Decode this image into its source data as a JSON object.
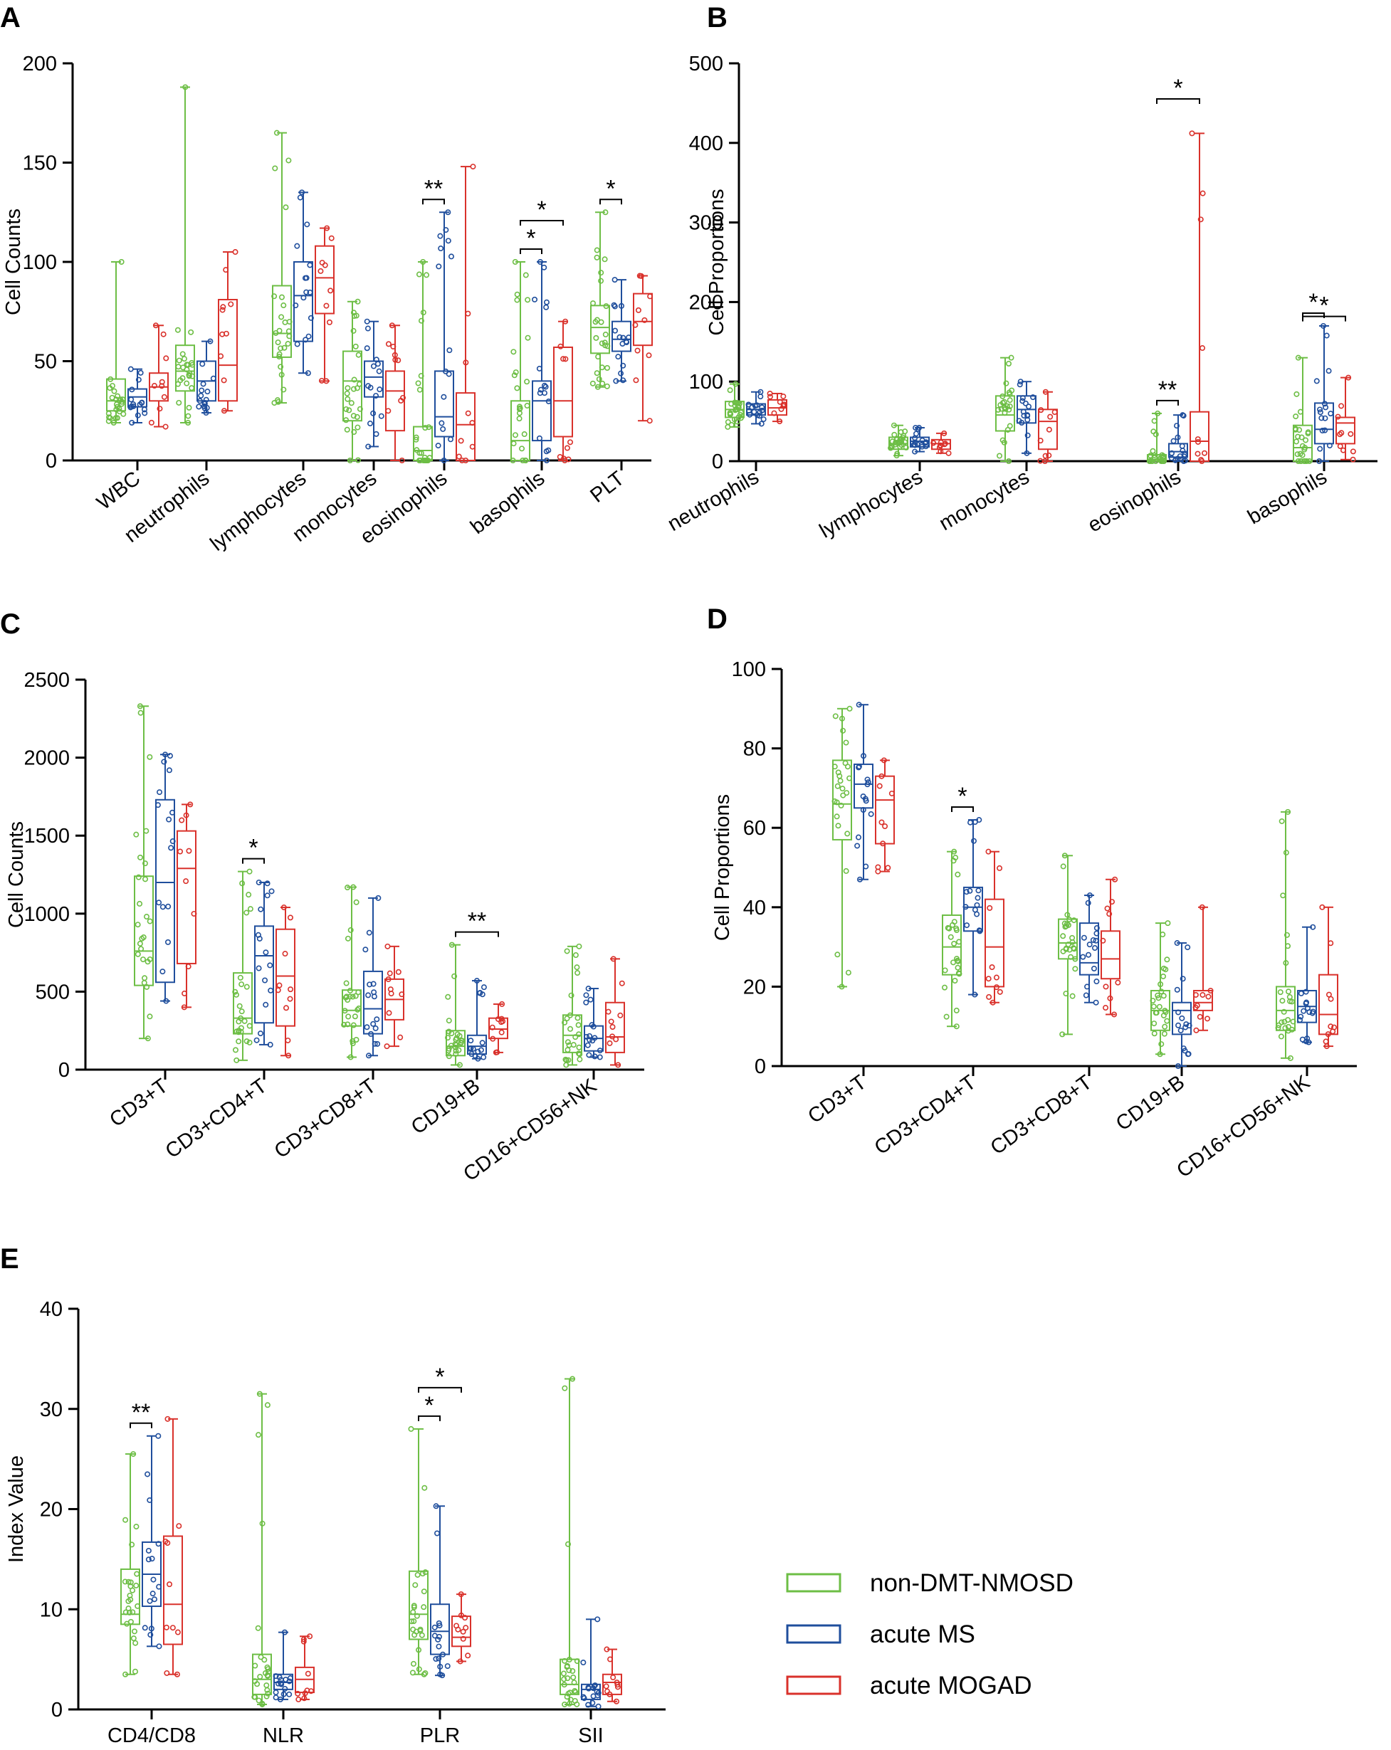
{
  "legend": [
    {
      "name": "non-DMT-NMOSD",
      "color": "#6dbe45"
    },
    {
      "name": "acute MS",
      "color": "#1f4e9c"
    },
    {
      "name": "acute MOGAD",
      "color": "#d9312b"
    }
  ],
  "chart_data": [
    {
      "panel": "A",
      "type": "box",
      "ylabel": "Cell Counts",
      "ylim": [
        0,
        200
      ],
      "yticks": [
        0,
        50,
        100,
        150,
        200
      ],
      "categories": [
        "WBC",
        "neutrophils",
        "lymphocytes",
        "monocytes",
        "eosinophils",
        "basophils",
        "PLT"
      ],
      "series": [
        {
          "name": "non-DMT-NMOSD",
          "boxes": [
            [
              19,
              25,
              30,
              41,
              100
            ],
            [
              19,
              35,
              45,
              58,
              188
            ],
            [
              29,
              52,
              64,
              88,
              165
            ],
            [
              0,
              20,
              40,
              55,
              80
            ],
            [
              0,
              0,
              5,
              17,
              100
            ],
            [
              0,
              0,
              10,
              30,
              100
            ],
            [
              37,
              54,
              67,
              78,
              125
            ]
          ]
        },
        {
          "name": "acute MS",
          "boxes": [
            [
              19,
              27,
              32,
              36,
              46
            ],
            [
              24,
              30,
              40,
              50,
              60
            ],
            [
              44,
              60,
              83,
              100,
              135
            ],
            [
              7,
              32,
              42,
              50,
              70
            ],
            [
              0,
              12,
              22,
              45,
              125
            ],
            [
              0,
              10,
              30,
              40,
              100
            ],
            [
              40,
              55,
              61,
              70,
              91
            ]
          ]
        },
        {
          "name": "acute MOGAD",
          "boxes": [
            [
              17,
              30,
              37,
              44,
              68
            ],
            [
              25,
              30,
              48,
              81,
              105
            ],
            [
              40,
              74,
              92,
              108,
              117
            ],
            [
              0,
              15,
              35,
              45,
              68
            ],
            [
              0,
              0,
              18,
              34,
              148
            ],
            [
              0,
              12,
              30,
              57,
              70
            ],
            [
              20,
              58,
              70,
              84,
              93
            ]
          ]
        }
      ],
      "significance": [
        {
          "category": "eosinophils",
          "pair": "non-DMT-NMOSD vs acute MS",
          "label": "**"
        },
        {
          "category": "basophils",
          "pair": "non-DMT-NMOSD vs acute MS",
          "label": "*"
        },
        {
          "category": "basophils",
          "pair": "non-DMT-NMOSD vs acute MOGAD",
          "label": "*"
        },
        {
          "category": "PLT",
          "pair": "non-DMT-NMOSD vs acute MS",
          "label": "*"
        }
      ]
    },
    {
      "panel": "B",
      "type": "box",
      "ylabel": "Cell Proportions",
      "ylim": [
        0,
        500
      ],
      "yticks": [
        0,
        100,
        200,
        300,
        400,
        500
      ],
      "categories": [
        "neutrophils",
        "lymphocytes",
        "monocytes",
        "eosinophils",
        "basophils"
      ],
      "series": [
        {
          "name": "non-DMT-NMOSD",
          "boxes": [
            [
              43,
              55,
              65,
              75,
              97
            ],
            [
              7,
              15,
              22,
              30,
              45
            ],
            [
              0,
              38,
              58,
              82,
              130
            ],
            [
              0,
              0,
              2,
              8,
              60
            ],
            [
              0,
              0,
              17,
              45,
              130
            ]
          ]
        },
        {
          "name": "acute MS",
          "boxes": [
            [
              47,
              58,
              65,
              72,
              87
            ],
            [
              12,
              18,
              25,
              30,
              42
            ],
            [
              10,
              48,
              65,
              82,
              100
            ],
            [
              0,
              5,
              12,
              22,
              58
            ],
            [
              0,
              22,
              40,
              73,
              170
            ]
          ]
        },
        {
          "name": "acute MOGAD",
          "boxes": [
            [
              50,
              58,
              67,
              77,
              85
            ],
            [
              10,
              15,
              22,
              27,
              35
            ],
            [
              0,
              15,
              50,
              65,
              87
            ],
            [
              0,
              0,
              25,
              62,
              412
            ],
            [
              2,
              22,
              48,
              55,
              105
            ]
          ]
        }
      ],
      "significance": [
        {
          "category": "eosinophils",
          "pair": "non-DMT-NMOSD vs acute MS",
          "label": "**"
        },
        {
          "category": "eosinophils",
          "pair": "non-DMT-NMOSD vs acute MOGAD",
          "label": "*"
        },
        {
          "category": "basophils",
          "pair": "non-DMT-NMOSD vs acute MS",
          "label": "*"
        },
        {
          "category": "basophils",
          "pair": "non-DMT-NMOSD vs acute MOGAD",
          "label": "*"
        }
      ]
    },
    {
      "panel": "C",
      "type": "box",
      "ylabel": "Cell Counts",
      "ylim": [
        0,
        2500
      ],
      "yticks": [
        0,
        500,
        1000,
        1500,
        2000,
        2500
      ],
      "categories": [
        "CD3+T",
        "CD3+CD4+T",
        "CD3+CD8+T",
        "CD19+B",
        "CD16+CD56+NK"
      ],
      "series": [
        {
          "name": "non-DMT-NMOSD",
          "boxes": [
            [
              200,
              540,
              760,
              1240,
              2330
            ],
            [
              60,
              230,
              330,
              620,
              1270
            ],
            [
              80,
              280,
              380,
              510,
              1170
            ],
            [
              30,
              90,
              150,
              250,
              800
            ],
            [
              30,
              110,
              220,
              350,
              790
            ]
          ]
        },
        {
          "name": "acute MS",
          "boxes": [
            [
              440,
              560,
              1200,
              1730,
              2020
            ],
            [
              160,
              300,
              730,
              920,
              1200
            ],
            [
              90,
              230,
              390,
              630,
              1100
            ],
            [
              70,
              100,
              150,
              220,
              570
            ],
            [
              80,
              120,
              200,
              280,
              520
            ]
          ]
        },
        {
          "name": "acute MOGAD",
          "boxes": [
            [
              400,
              680,
              1290,
              1530,
              1700
            ],
            [
              90,
              280,
              600,
              900,
              1040
            ],
            [
              150,
              320,
              450,
              580,
              790
            ],
            [
              110,
              200,
              260,
              330,
              420
            ],
            [
              30,
              110,
              210,
              430,
              710
            ]
          ]
        }
      ],
      "significance": [
        {
          "category": "CD3+CD4+T",
          "pair": "non-DMT-NMOSD vs acute MS",
          "label": "*"
        },
        {
          "category": "CD19+B",
          "pair": "non-DMT-NMOSD vs acute MOGAD",
          "label": "**"
        }
      ]
    },
    {
      "panel": "D",
      "type": "box",
      "ylabel": "Cell Proportions",
      "ylim": [
        0,
        100
      ],
      "yticks": [
        0,
        20,
        40,
        60,
        80,
        100
      ],
      "categories": [
        "CD3+T",
        "CD3+CD4+T",
        "CD3+CD8+T",
        "CD19+B",
        "CD16+CD56+NK"
      ],
      "series": [
        {
          "name": "non-DMT-NMOSD",
          "boxes": [
            [
              20,
              57,
              66,
              77,
              90
            ],
            [
              10,
              23,
              30,
              38,
              54
            ],
            [
              8,
              27,
              31,
              37,
              53
            ],
            [
              3,
              9,
              14,
              19,
              36
            ],
            [
              2,
              9,
              14,
              20,
              64
            ]
          ]
        },
        {
          "name": "acute MS",
          "boxes": [
            [
              47,
              65,
              71,
              76,
              91
            ],
            [
              18,
              34,
              40,
              45,
              62
            ],
            [
              16,
              23,
              26,
              36,
              43
            ],
            [
              0,
              8,
              14,
              16,
              31
            ],
            [
              6,
              11,
              15,
              19,
              35
            ]
          ]
        },
        {
          "name": "acute MOGAD",
          "boxes": [
            [
              49,
              56,
              67,
              73,
              77
            ],
            [
              16,
              20,
              30,
              42,
              54
            ],
            [
              13,
              22,
              27,
              34,
              47
            ],
            [
              9,
              14,
              16,
              19,
              40
            ],
            [
              5,
              8,
              13,
              23,
              40
            ]
          ]
        }
      ],
      "significance": [
        {
          "category": "CD3+CD4+T",
          "pair": "non-DMT-NMOSD vs acute MS",
          "label": "*"
        }
      ]
    },
    {
      "panel": "E",
      "type": "box",
      "ylabel": "Index Value",
      "ylim": [
        0,
        40
      ],
      "yticks": [
        0,
        10,
        20,
        30,
        40
      ],
      "categories": [
        "CD4/CD8",
        "NLR",
        "PLR",
        "SII"
      ],
      "series": [
        {
          "name": "non-DMT-NMOSD",
          "boxes": [
            [
              3.5,
              8.5,
              9.5,
              14,
              25.5
            ],
            [
              0.5,
              1.5,
              3,
              5.5,
              31.5
            ],
            [
              3.5,
              7,
              9.5,
              13.8,
              28
            ],
            [
              0.5,
              1.5,
              2.5,
              5,
              33
            ]
          ]
        },
        {
          "name": "acute MS",
          "boxes": [
            [
              6.3,
              10.3,
              13.5,
              16.7,
              27.3
            ],
            [
              1,
              2,
              2.7,
              3.5,
              7.7
            ],
            [
              3.4,
              5.5,
              7.8,
              10.5,
              20.3
            ],
            [
              0.3,
              1,
              2,
              2.5,
              9
            ]
          ]
        },
        {
          "name": "acute MOGAD",
          "boxes": [
            [
              3.5,
              6.5,
              10.5,
              17.3,
              29
            ],
            [
              1,
              1.7,
              3,
              4.2,
              7.3
            ],
            [
              4.8,
              6.3,
              7.2,
              9.3,
              11.5
            ],
            [
              0.8,
              1.5,
              2.7,
              3.5,
              6
            ]
          ]
        }
      ],
      "significance": [
        {
          "category": "CD4/CD8",
          "pair": "non-DMT-NMOSD vs acute MS",
          "label": "**"
        },
        {
          "category": "PLR",
          "pair": "non-DMT-NMOSD vs acute MS",
          "label": "*"
        },
        {
          "category": "PLR",
          "pair": "non-DMT-NMOSD vs acute MOGAD",
          "label": "*"
        }
      ]
    }
  ]
}
